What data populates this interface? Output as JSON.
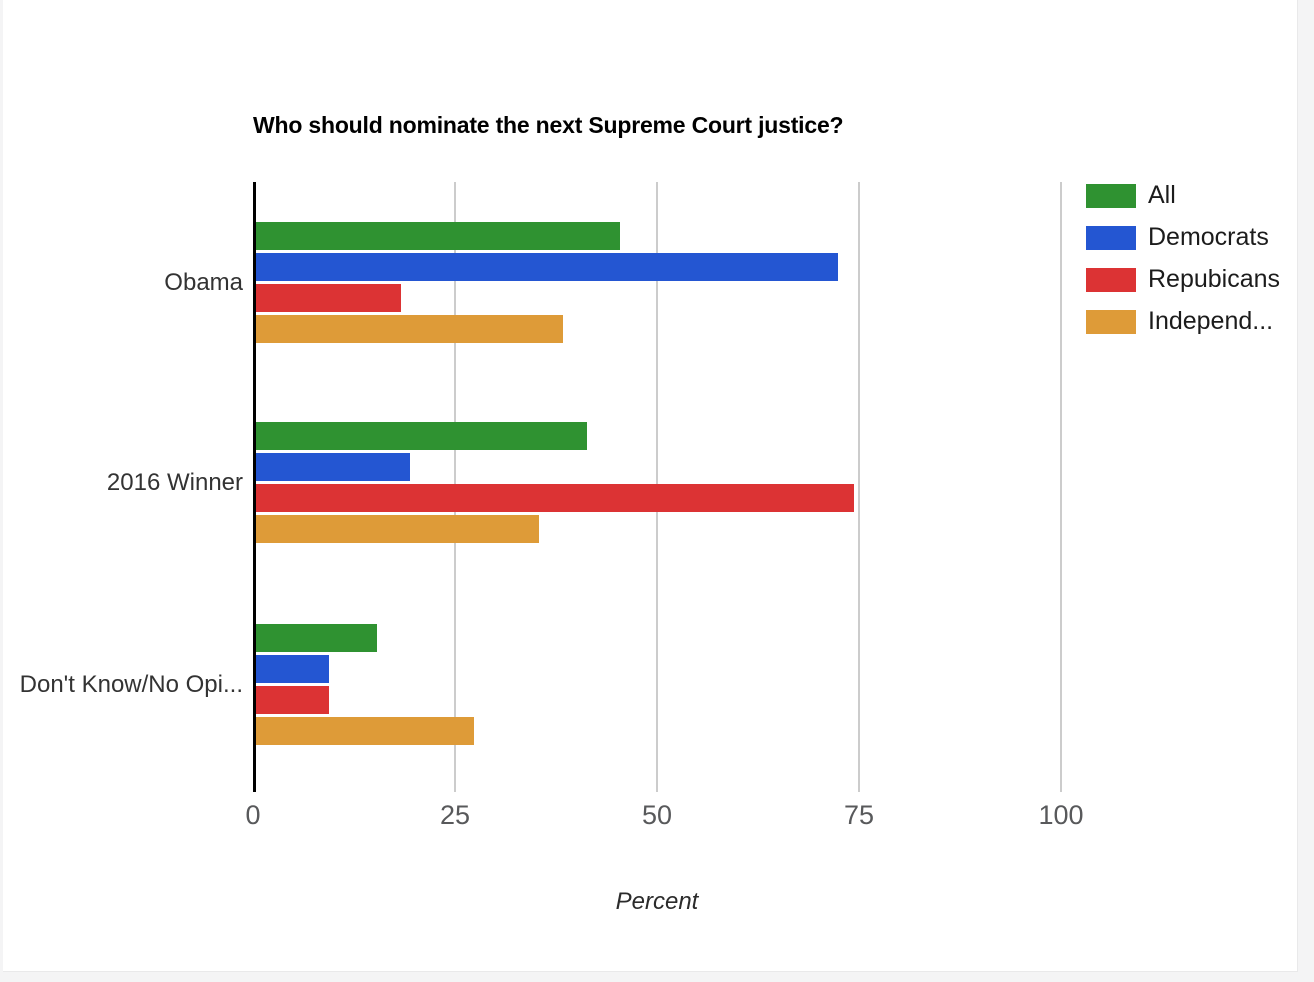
{
  "page": {
    "edge_color": "#f4f4f5",
    "card_color": "#ffffff"
  },
  "chart_data": {
    "type": "bar",
    "orientation": "horizontal",
    "title": "Who should nominate the next Supreme Court justice?",
    "xlabel": "Percent",
    "xlim": [
      0,
      100
    ],
    "x_ticks": [
      0,
      25,
      50,
      75,
      100
    ],
    "grid": true,
    "legend_position": "top-right",
    "categories": [
      "Obama",
      "2016 Winner",
      "Don't Know/No Opi..."
    ],
    "series": [
      {
        "name": "All",
        "color": "#2f9231",
        "values": [
          45,
          41,
          15
        ]
      },
      {
        "name": "Democrats",
        "color": "#2456d2",
        "values": [
          72,
          19,
          9
        ]
      },
      {
        "name": "Repubicans",
        "color": "#dc3334",
        "values": [
          18,
          74,
          9
        ]
      },
      {
        "name": "Independ...",
        "color": "#de9b38",
        "values": [
          38,
          35,
          27
        ]
      }
    ]
  }
}
